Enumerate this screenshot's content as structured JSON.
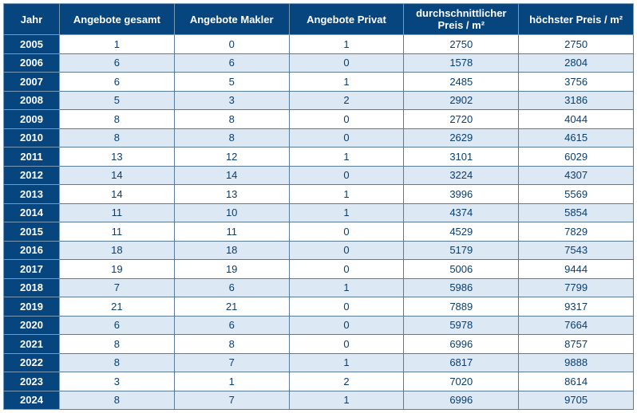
{
  "table": {
    "columns": [
      "Jahr",
      "Angebote gesamt",
      "Angebote Makler",
      "Angebote Privat",
      "durchschnittlicher Preis / m²",
      "höchster Preis / m²"
    ],
    "header_bg": "#06457e",
    "header_color": "#ffffff",
    "row_odd_bg": "#ffffff",
    "row_even_bg": "#dce9f4",
    "text_color": "#0a3d6e",
    "border_color": "#5a7a96",
    "header_fontsize": 13,
    "cell_fontsize": 13,
    "rows": [
      [
        "2005",
        "1",
        "0",
        "1",
        "2750",
        "2750"
      ],
      [
        "2006",
        "6",
        "6",
        "0",
        "1578",
        "2804"
      ],
      [
        "2007",
        "6",
        "5",
        "1",
        "2485",
        "3756"
      ],
      [
        "2008",
        "5",
        "3",
        "2",
        "2902",
        "3186"
      ],
      [
        "2009",
        "8",
        "8",
        "0",
        "2720",
        "4044"
      ],
      [
        "2010",
        "8",
        "8",
        "0",
        "2629",
        "4615"
      ],
      [
        "2011",
        "13",
        "12",
        "1",
        "3101",
        "6029"
      ],
      [
        "2012",
        "14",
        "14",
        "0",
        "3224",
        "4307"
      ],
      [
        "2013",
        "14",
        "13",
        "1",
        "3996",
        "5569"
      ],
      [
        "2014",
        "11",
        "10",
        "1",
        "4374",
        "5854"
      ],
      [
        "2015",
        "11",
        "11",
        "0",
        "4529",
        "7829"
      ],
      [
        "2016",
        "18",
        "18",
        "0",
        "5179",
        "7543"
      ],
      [
        "2017",
        "19",
        "19",
        "0",
        "5006",
        "9444"
      ],
      [
        "2018",
        "7",
        "6",
        "1",
        "5986",
        "7799"
      ],
      [
        "2019",
        "21",
        "21",
        "0",
        "7889",
        "9317"
      ],
      [
        "2020",
        "6",
        "6",
        "0",
        "5978",
        "7664"
      ],
      [
        "2021",
        "8",
        "8",
        "0",
        "6996",
        "8757"
      ],
      [
        "2022",
        "8",
        "7",
        "1",
        "6817",
        "9888"
      ],
      [
        "2023",
        "3",
        "1",
        "2",
        "7020",
        "8614"
      ],
      [
        "2024",
        "8",
        "7",
        "1",
        "6996",
        "9705"
      ]
    ]
  }
}
